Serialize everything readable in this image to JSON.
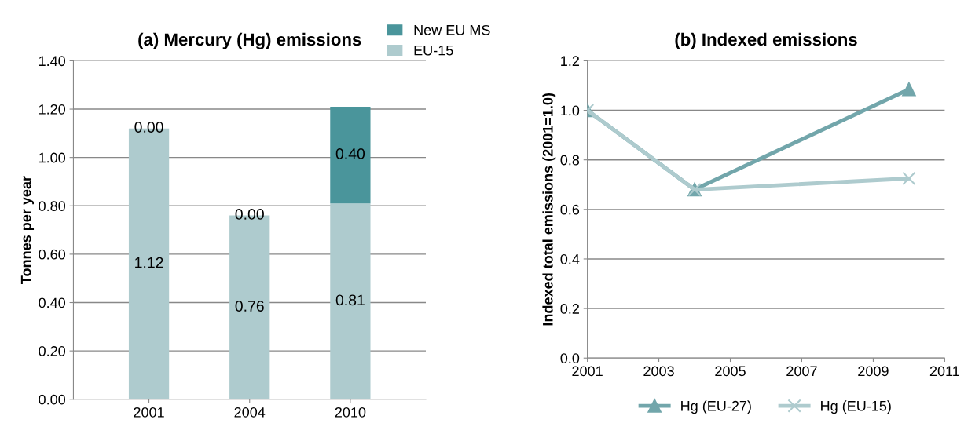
{
  "chart_data": [
    {
      "type": "bar",
      "title": "(a) Mercury (Hg) emissions",
      "ylabel": "Tonnes per year",
      "categories": [
        "2001",
        "2004",
        "2010"
      ],
      "stacked": true,
      "series": [
        {
          "name": "EU-15",
          "color": "#aecbce",
          "values": [
            1.12,
            0.76,
            0.81
          ],
          "value_labels": [
            "1.12",
            "0.76",
            "0.81"
          ]
        },
        {
          "name": "New EU MS",
          "color": "#4a959b",
          "values": [
            0.0,
            0.0,
            0.4
          ],
          "value_labels": [
            "0.00",
            "0.00",
            "0.40"
          ]
        }
      ],
      "ylim": [
        0,
        1.4
      ],
      "yticks": [
        {
          "value": 0,
          "label": "0.00"
        },
        {
          "value": 0.2,
          "label": "0.20"
        },
        {
          "value": 0.4,
          "label": "0.40"
        },
        {
          "value": 0.6,
          "label": "0.60"
        },
        {
          "value": 0.8,
          "label": "0.80"
        },
        {
          "value": 1.0,
          "label": "1.00"
        },
        {
          "value": 1.2,
          "label": "1.20"
        },
        {
          "value": 1.4,
          "label": "1.40"
        }
      ],
      "grid": "y",
      "legend": "top right"
    },
    {
      "type": "line",
      "title": "(b) Indexed emissions",
      "ylabel": "Indexed total emissions (2001=1.0)",
      "x": [
        2001,
        2004,
        2010
      ],
      "series": [
        {
          "name": "Hg (EU-27)",
          "color": "#72a6ab",
          "values": [
            1.0,
            0.68,
            1.085
          ],
          "marker": "triangle"
        },
        {
          "name": "Hg (EU-15)",
          "color": "#aecbce",
          "values": [
            1.0,
            0.68,
            0.725
          ],
          "marker": "cross"
        }
      ],
      "xlim": [
        2001,
        2011
      ],
      "xticks": [
        2001,
        2003,
        2005,
        2007,
        2009,
        2011
      ],
      "ylim": [
        0,
        1.2
      ],
      "yticks": [
        {
          "value": 0,
          "label": "0.0"
        },
        {
          "value": 0.2,
          "label": "0.2"
        },
        {
          "value": 0.4,
          "label": "0.4"
        },
        {
          "value": 0.6,
          "label": "0.6"
        },
        {
          "value": 0.8,
          "label": "0.8"
        },
        {
          "value": 1.0,
          "label": "1.0"
        },
        {
          "value": 1.2,
          "label": "1.2"
        }
      ],
      "grid": "y",
      "legend": "bottom",
      "line_style": "solid"
    }
  ]
}
